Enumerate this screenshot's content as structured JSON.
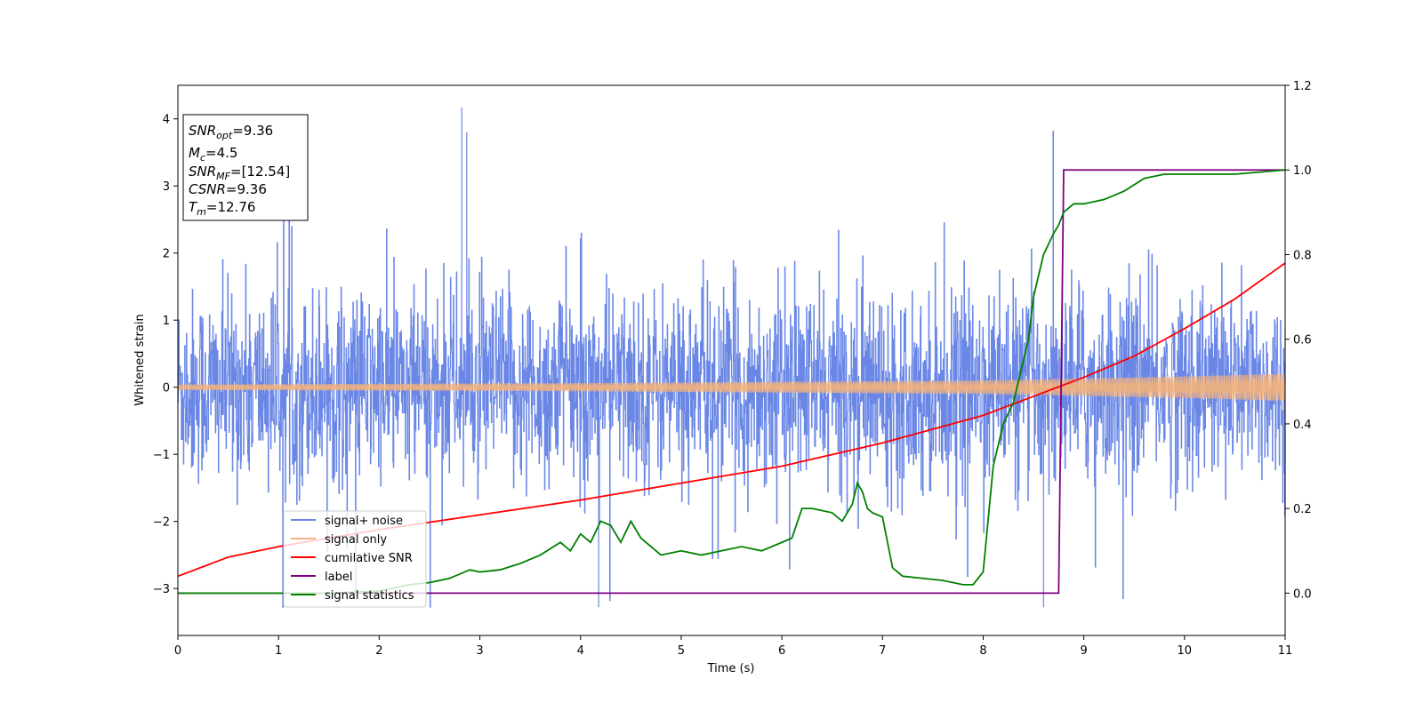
{
  "chart_data": {
    "type": "line",
    "xlabel": "Time (s)",
    "ylabel": "Whitened strain",
    "xlim": [
      0,
      11
    ],
    "ylim_left": [
      -3.7,
      4.5
    ],
    "ylim_right": [
      -0.1,
      1.2
    ],
    "xticks": [
      "0",
      "1",
      "2",
      "3",
      "4",
      "5",
      "6",
      "7",
      "8",
      "9",
      "10",
      "11"
    ],
    "yticks_left": [
      "−3",
      "−2",
      "−1",
      "0",
      "1",
      "2",
      "3",
      "4"
    ],
    "yticks_right": [
      "0.0",
      "0.2",
      "0.4",
      "0.6",
      "0.8",
      "1.0",
      "1.2"
    ],
    "grid": false,
    "legend_position": "lower-left",
    "series": [
      {
        "name": "signal+ noise",
        "axis": "left",
        "color": "#6a87e6",
        "description_values": {
          "typical_range": [
            -2.0,
            2.0
          ],
          "max": 4.17,
          "min": -3.28
        }
      },
      {
        "name": "signal only",
        "axis": "left",
        "color": "#f5b27a",
        "envelope": {
          "x": [
            0,
            2,
            4,
            6,
            8,
            9,
            10,
            11
          ],
          "amplitude": [
            0.04,
            0.05,
            0.06,
            0.08,
            0.1,
            0.13,
            0.16,
            0.2
          ]
        }
      },
      {
        "name": "cumilative SNR",
        "axis": "right",
        "color": "#ff0000",
        "x": [
          0,
          0.5,
          1,
          1.5,
          2,
          3,
          4,
          5,
          6,
          7,
          8,
          8.5,
          9,
          9.5,
          10,
          10.5,
          11
        ],
        "y": [
          0.04,
          0.085,
          0.11,
          0.13,
          0.15,
          0.185,
          0.22,
          0.26,
          0.3,
          0.355,
          0.42,
          0.465,
          0.51,
          0.56,
          0.625,
          0.695,
          0.78
        ]
      },
      {
        "name": "label",
        "axis": "right",
        "color": "#800080",
        "x": [
          0,
          8.75,
          8.8,
          11
        ],
        "y": [
          0,
          0,
          1,
          1
        ]
      },
      {
        "name": "signal statistics",
        "axis": "right",
        "color": "#008000",
        "x": [
          0,
          0.5,
          1,
          1.5,
          2,
          2.3,
          2.5,
          2.7,
          2.9,
          3.0,
          3.2,
          3.4,
          3.6,
          3.8,
          3.9,
          4.0,
          4.1,
          4.2,
          4.3,
          4.4,
          4.5,
          4.6,
          4.8,
          5.0,
          5.2,
          5.4,
          5.6,
          5.8,
          6.0,
          6.1,
          6.2,
          6.3,
          6.5,
          6.6,
          6.7,
          6.75,
          6.8,
          6.85,
          6.9,
          7.0,
          7.1,
          7.2,
          7.4,
          7.6,
          7.8,
          7.9,
          8.0,
          8.1,
          8.2,
          8.3,
          8.4,
          8.45,
          8.5,
          8.6,
          8.7,
          8.75,
          8.8,
          8.9,
          9.0,
          9.2,
          9.4,
          9.6,
          9.8,
          10.0,
          10.5,
          11
        ],
        "y": [
          0.0,
          0.0,
          0.0,
          0.0,
          0.005,
          0.02,
          0.025,
          0.035,
          0.055,
          0.05,
          0.055,
          0.07,
          0.09,
          0.12,
          0.1,
          0.14,
          0.12,
          0.17,
          0.16,
          0.12,
          0.17,
          0.13,
          0.09,
          0.1,
          0.09,
          0.1,
          0.11,
          0.1,
          0.12,
          0.13,
          0.2,
          0.2,
          0.19,
          0.17,
          0.21,
          0.26,
          0.24,
          0.2,
          0.19,
          0.18,
          0.06,
          0.04,
          0.035,
          0.03,
          0.02,
          0.02,
          0.05,
          0.3,
          0.4,
          0.45,
          0.55,
          0.6,
          0.7,
          0.8,
          0.85,
          0.87,
          0.9,
          0.92,
          0.92,
          0.93,
          0.95,
          0.98,
          0.99,
          0.99,
          0.99,
          1.0
        ]
      }
    ]
  },
  "info_box": {
    "line1_main": "SNR",
    "line1_sub": "opt",
    "line1_val": "=9.36",
    "line2_main": "M",
    "line2_sub": "c",
    "line2_val": "=4.5",
    "line3_main": "SNR",
    "line3_sub": "MF",
    "line3_val": "=[12.54]",
    "line4_main": "CSNR",
    "line4_val": "=9.36",
    "line5_main": "T",
    "line5_sub": "m",
    "line5_val": "=12.76"
  },
  "legend": {
    "items": [
      "signal+ noise",
      "signal only",
      "cumilative SNR",
      "label",
      "signal statistics"
    ]
  }
}
